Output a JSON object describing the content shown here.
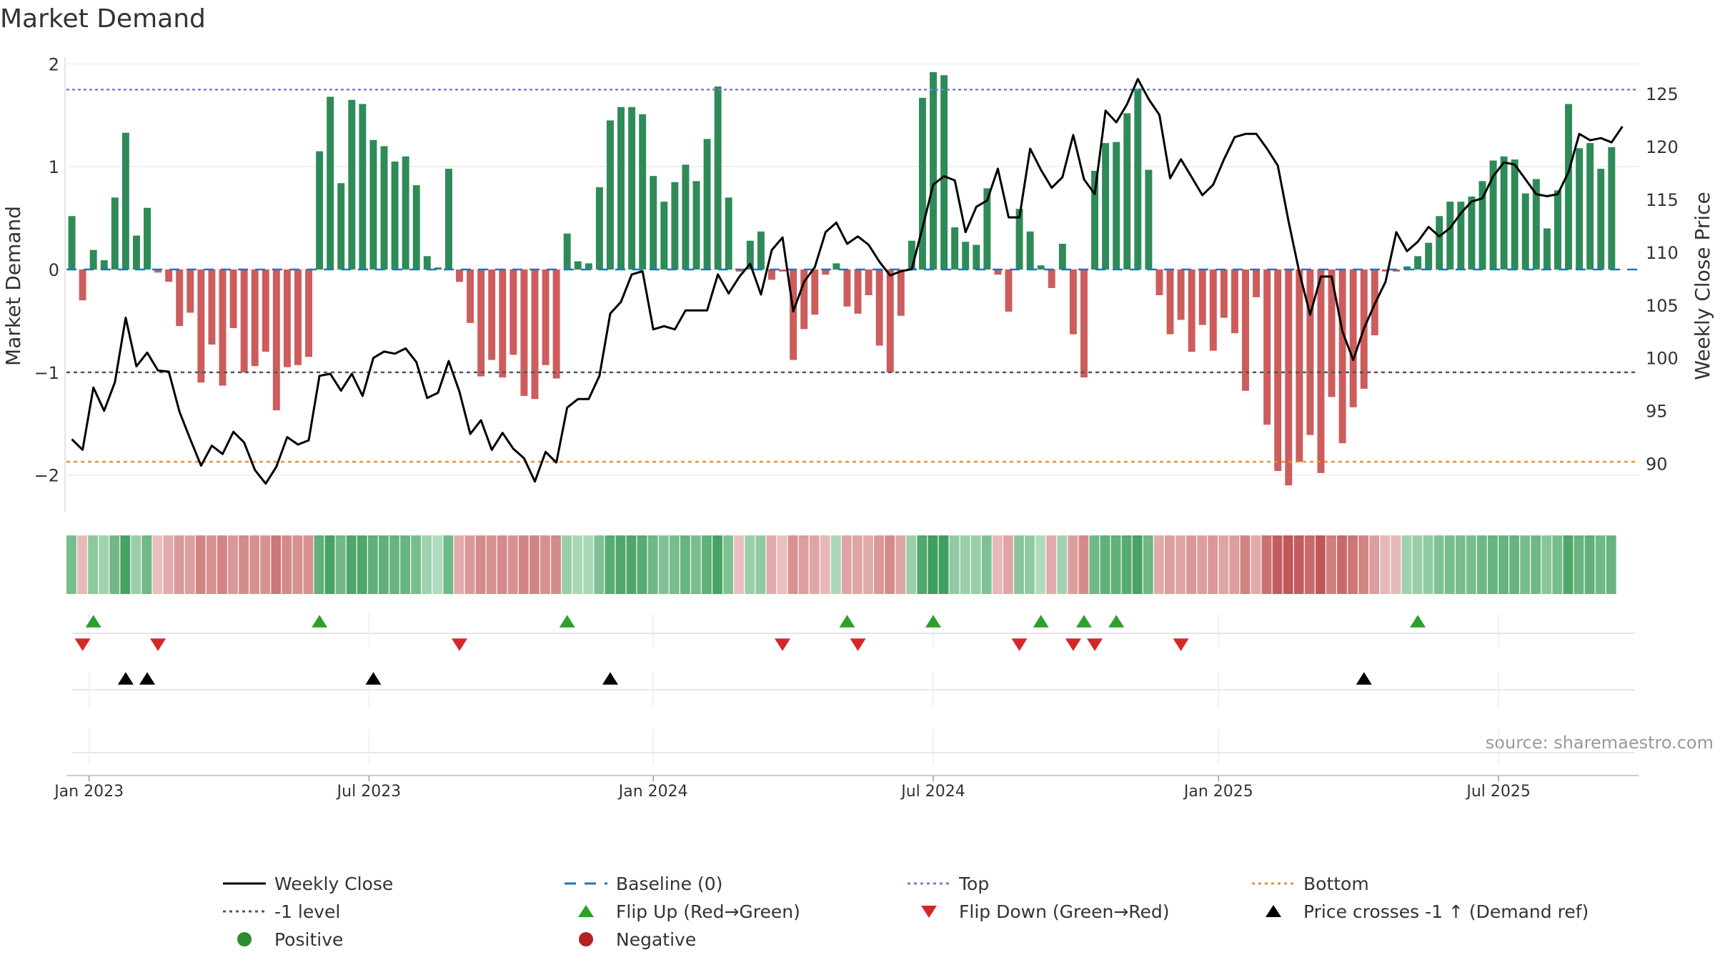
{
  "chart_data": {
    "type": "bar",
    "title": "Market Demand",
    "ylabel_left": "Market Demand",
    "ylabel_right": "Weekly Close Price",
    "source": "source: sharemaestro.com",
    "ylim_left": [
      -2.35,
      2.1
    ],
    "ylim_right": [
      85.5,
      128.8
    ],
    "yticks_left": [
      2,
      1,
      0,
      -1,
      -2
    ],
    "yticks_left_labels": [
      "2",
      "1",
      "0",
      "−1",
      "−2"
    ],
    "yticks_right": [
      125,
      120,
      115,
      110,
      105,
      100,
      95,
      90
    ],
    "yticks_right_labels": [
      "125",
      "120",
      "115",
      "110",
      "105",
      "100",
      "95",
      "90"
    ],
    "x_start": "2022-12-19",
    "week_count": 146,
    "xticks": [
      {
        "label": "Jan 2023",
        "week": 1.6
      },
      {
        "label": "Jul 2023",
        "week": 27.6
      },
      {
        "label": "Jan 2024",
        "week": 54.0
      },
      {
        "label": "Jul 2024",
        "week": 80.0
      },
      {
        "label": "Jan 2025",
        "week": 106.5
      },
      {
        "label": "Jul 2025",
        "week": 132.5
      }
    ],
    "reference_lines": {
      "top": 1.75,
      "minus_one": -1.0,
      "bottom": -1.87,
      "baseline": 0
    },
    "colors": {
      "positive": "#2e8b57",
      "negative": "#cd5c5c",
      "price": "#000000",
      "top": "#7b7bd1",
      "bottom": "#e69138",
      "minus_one": "#555555",
      "baseline": "#1f77b4",
      "flip_up": "#2ca02c",
      "flip_down": "#d62728",
      "cross": "#000000"
    },
    "demand": [
      0.52,
      -0.3,
      0.19,
      0.09,
      0.7,
      1.33,
      0.33,
      0.6,
      -0.03,
      -0.12,
      -0.55,
      -0.42,
      -1.1,
      -0.73,
      -1.13,
      -0.57,
      -1.0,
      -0.94,
      -0.8,
      -1.37,
      -0.95,
      -0.93,
      -0.85,
      1.15,
      1.68,
      0.84,
      1.65,
      1.61,
      1.26,
      1.2,
      1.05,
      1.1,
      0.82,
      0.13,
      0.02,
      0.98,
      -0.12,
      -0.52,
      -1.04,
      -0.88,
      -1.05,
      -0.83,
      -1.23,
      -1.26,
      -0.93,
      -1.06,
      0.35,
      0.08,
      0.06,
      0.8,
      1.45,
      1.58,
      1.58,
      1.51,
      0.91,
      0.66,
      0.85,
      1.02,
      0.86,
      1.27,
      1.78,
      0.7,
      -0.02,
      0.28,
      0.37,
      -0.1,
      -0.02,
      -0.88,
      -0.58,
      -0.44,
      -0.05,
      0.06,
      -0.36,
      -0.43,
      -0.25,
      -0.74,
      -1.0,
      -0.45,
      0.28,
      1.67,
      1.92,
      1.89,
      0.41,
      0.27,
      0.24,
      0.79,
      -0.05,
      -0.41,
      0.59,
      0.37,
      0.04,
      -0.18,
      0.25,
      -0.63,
      -1.05,
      0.96,
      1.23,
      1.24,
      1.52,
      1.76,
      0.97,
      -0.25,
      -0.63,
      -0.49,
      -0.8,
      -0.54,
      -0.79,
      -0.47,
      -0.62,
      -1.18,
      -0.27,
      -1.51,
      -1.96,
      -2.1,
      -1.87,
      -1.61,
      -1.98,
      -1.24,
      -1.69,
      -1.34,
      -1.16,
      -0.64,
      -0.02,
      -0.02,
      0.03,
      0.13,
      0.26,
      0.52,
      0.66,
      0.66,
      0.71,
      0.86,
      1.06,
      1.1,
      1.07,
      0.74,
      0.88,
      0.4,
      0.77,
      1.61,
      1.18,
      1.23,
      0.98,
      1.19
    ],
    "price": [
      92.3,
      91.3,
      97.2,
      95.0,
      97.7,
      103.8,
      99.2,
      100.5,
      98.8,
      98.7,
      94.9,
      92.3,
      89.8,
      91.7,
      90.9,
      93.0,
      92.0,
      89.4,
      88.1,
      89.7,
      92.5,
      91.8,
      92.2,
      98.3,
      98.5,
      96.9,
      98.5,
      96.4,
      100.0,
      100.6,
      100.4,
      100.9,
      99.6,
      96.2,
      96.7,
      99.7,
      96.8,
      92.8,
      94.1,
      91.3,
      92.9,
      91.4,
      90.5,
      88.3,
      91.1,
      90.1,
      95.3,
      96.1,
      96.1,
      98.3,
      104.2,
      105.3,
      107.9,
      108.2,
      102.7,
      103.0,
      102.7,
      104.5,
      104.5,
      104.5,
      107.9,
      106.1,
      107.7,
      108.9,
      106.0,
      110.2,
      111.4,
      104.4,
      107.2,
      108.6,
      111.9,
      112.8,
      110.8,
      111.5,
      110.7,
      109.1,
      107.8,
      108.2,
      108.4,
      112.3,
      116.4,
      117.2,
      116.8,
      111.9,
      114.3,
      114.9,
      117.9,
      113.3,
      113.3,
      119.8,
      117.8,
      116.1,
      117.1,
      121.1,
      116.9,
      115.5,
      123.4,
      122.3,
      124.0,
      126.4,
      124.5,
      123.0,
      117.0,
      118.8,
      117.1,
      115.4,
      116.4,
      118.8,
      120.9,
      121.2,
      121.2,
      119.8,
      118.2,
      112.9,
      108.1,
      104.1,
      107.7,
      107.7,
      102.5,
      99.8,
      102.8,
      105.1,
      107.2,
      111.9,
      110.1,
      111.0,
      112.4,
      111.5,
      112.3,
      113.7,
      114.8,
      115.1,
      117.2,
      118.5,
      118.3,
      116.9,
      115.5,
      115.3,
      115.5,
      117.6,
      121.2,
      120.6,
      120.8,
      120.4,
      121.9
    ],
    "heat_levels": [
      0.55,
      0.18,
      0.42,
      0.3,
      0.6,
      0.85,
      0.35,
      0.6,
      0.15,
      0.3,
      0.45,
      0.4,
      0.6,
      0.5,
      0.6,
      0.45,
      0.55,
      0.5,
      0.5,
      0.7,
      0.55,
      0.5,
      0.5,
      0.7,
      0.85,
      0.6,
      0.8,
      0.8,
      0.7,
      0.7,
      0.65,
      0.65,
      0.55,
      0.3,
      0.2,
      0.6,
      0.3,
      0.45,
      0.55,
      0.5,
      0.55,
      0.5,
      0.6,
      0.6,
      0.5,
      0.55,
      0.35,
      0.25,
      0.25,
      0.5,
      0.75,
      0.8,
      0.8,
      0.75,
      0.6,
      0.5,
      0.55,
      0.65,
      0.55,
      0.7,
      0.85,
      0.5,
      0.15,
      0.35,
      0.4,
      0.3,
      0.15,
      0.5,
      0.4,
      0.35,
      0.2,
      0.25,
      0.35,
      0.35,
      0.3,
      0.45,
      0.55,
      0.35,
      0.35,
      0.8,
      0.9,
      0.9,
      0.4,
      0.35,
      0.35,
      0.5,
      0.2,
      0.35,
      0.45,
      0.4,
      0.2,
      0.3,
      0.3,
      0.4,
      0.55,
      0.6,
      0.7,
      0.7,
      0.75,
      0.85,
      0.6,
      0.3,
      0.4,
      0.35,
      0.45,
      0.4,
      0.45,
      0.35,
      0.4,
      0.6,
      0.3,
      0.75,
      0.9,
      0.95,
      0.9,
      0.8,
      0.95,
      0.65,
      0.8,
      0.7,
      0.6,
      0.4,
      0.2,
      0.2,
      0.3,
      0.35,
      0.4,
      0.5,
      0.55,
      0.55,
      0.55,
      0.6,
      0.65,
      0.65,
      0.65,
      0.55,
      0.6,
      0.45,
      0.55,
      0.8,
      0.65,
      0.7,
      0.6,
      0.65
    ],
    "flip_up_weeks": [
      2,
      23,
      46,
      72,
      80,
      90,
      94,
      97,
      125
    ],
    "flip_down_weeks": [
      1,
      8,
      36,
      66,
      73,
      88,
      93,
      95,
      103
    ],
    "price_cross_weeks": [
      5,
      7,
      28,
      50,
      120
    ],
    "legend": [
      {
        "label": "Weekly Close",
        "kind": "solid-line",
        "color": "#000000"
      },
      {
        "label": "Baseline (0)",
        "kind": "dash-line",
        "color": "#1f77b4"
      },
      {
        "label": "Top",
        "kind": "dot-line",
        "color": "#7b7bd1"
      },
      {
        "label": "Bottom",
        "kind": "dot-line",
        "color": "#e69138"
      },
      {
        "label": "-1 level",
        "kind": "dot-line",
        "color": "#555555"
      },
      {
        "label": "Flip Up (Red→Green)",
        "kind": "triangle-up",
        "color": "#2ca02c"
      },
      {
        "label": "Flip Down (Green→Red)",
        "kind": "triangle-down",
        "color": "#d62728"
      },
      {
        "label": "Price crosses -1 ↑ (Demand ref)",
        "kind": "triangle-up",
        "color": "#000000"
      },
      {
        "label": "Positive",
        "kind": "circle",
        "color": "#2e8b2e"
      },
      {
        "label": "Negative",
        "kind": "circle",
        "color": "#b22222"
      }
    ]
  }
}
